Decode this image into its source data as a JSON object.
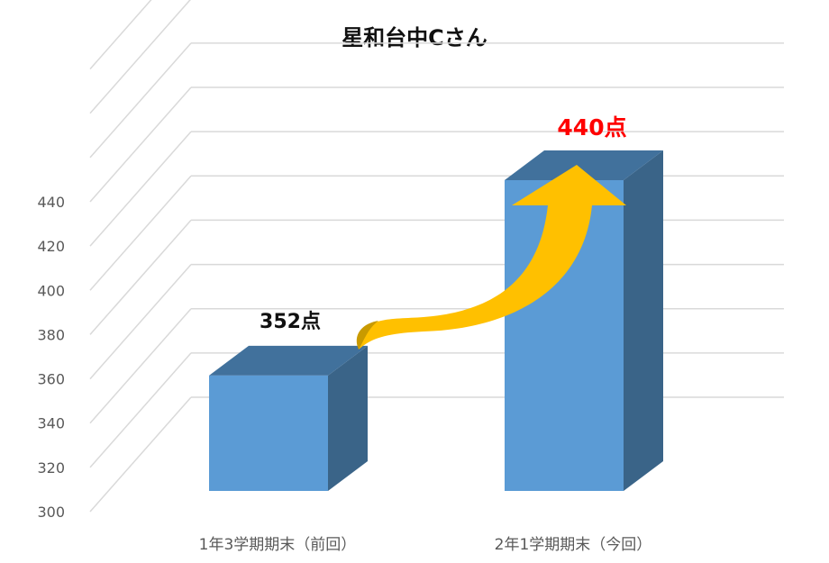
{
  "chart_data": {
    "type": "bar",
    "title": "星和台中Cさん",
    "categories": [
      "1年3学期期末（前回）",
      "2年1学期期末（今回）"
    ],
    "values": [
      352,
      440
    ],
    "data_labels": [
      "352点",
      "440点"
    ],
    "data_label_colors": [
      "#111111",
      "#ff0000"
    ],
    "ylim": [
      300,
      440
    ],
    "yticks": [
      300,
      320,
      340,
      360,
      380,
      400,
      420,
      440
    ],
    "grid": true,
    "bar_color": "#5b9bd5",
    "bar_top_color": "#41719c",
    "bar_side_color": "#3a6488",
    "arrow_color": "#ffc000",
    "gridline_color": "#d9d9d9",
    "tick_label_color": "#595959"
  }
}
